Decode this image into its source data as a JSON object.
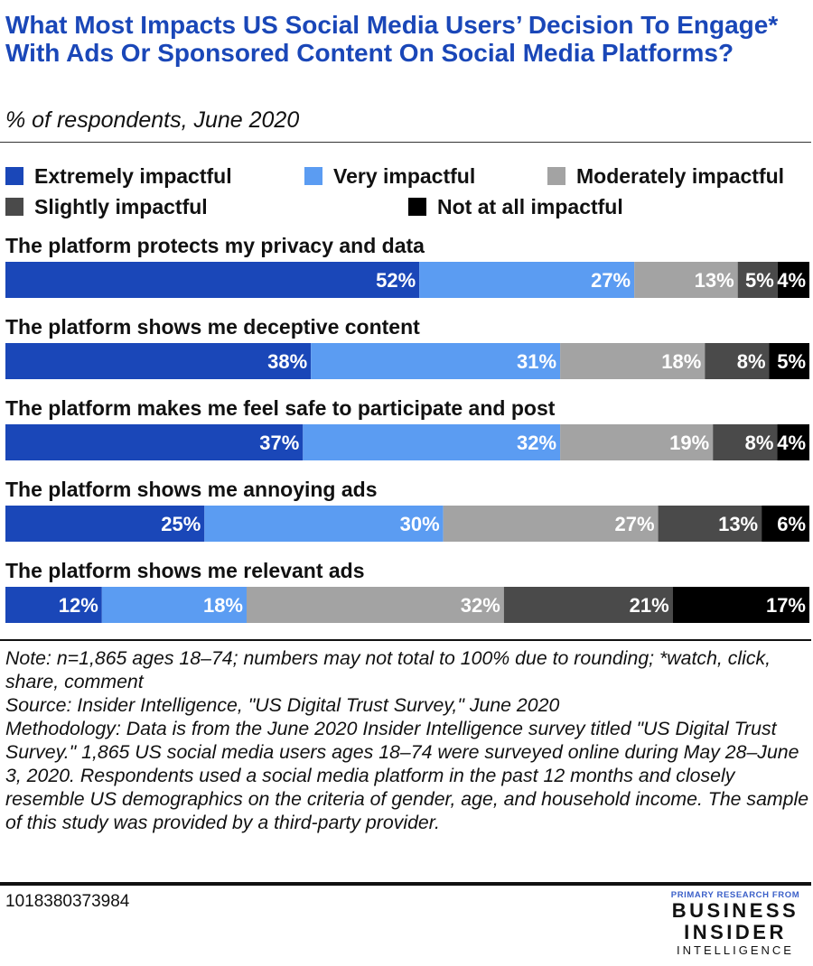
{
  "header": {
    "title": "What Most Impacts US Social Media Users’ Decision To Engage* With Ads Or Sponsored Content On Social Media Platforms?",
    "subtitle": "% of respondents, June 2020"
  },
  "legend": [
    {
      "label": "Extremely impactful",
      "color": "#1a47b8"
    },
    {
      "label": "Very impactful",
      "color": "#5b9cf2"
    },
    {
      "label": "Moderately impactful",
      "color": "#a3a3a3"
    },
    {
      "label": "Slightly impactful",
      "color": "#4a4a4a"
    },
    {
      "label": "Not at all impactful",
      "color": "#000000"
    }
  ],
  "chart_data": {
    "type": "bar",
    "stacked": true,
    "orientation": "horizontal",
    "categories": [
      "The platform protects my privacy and data",
      "The platform shows me deceptive content",
      "The platform makes me feel safe to participate and post",
      "The platform shows me annoying ads",
      "The platform shows me relevant ads"
    ],
    "series": [
      {
        "name": "Extremely impactful",
        "color": "#1a47b8",
        "values": [
          52,
          38,
          37,
          25,
          12
        ]
      },
      {
        "name": "Very impactful",
        "color": "#5b9cf2",
        "values": [
          27,
          31,
          32,
          30,
          18
        ]
      },
      {
        "name": "Moderately impactful",
        "color": "#a3a3a3",
        "values": [
          13,
          18,
          19,
          27,
          32
        ]
      },
      {
        "name": "Slightly impactful",
        "color": "#4a4a4a",
        "values": [
          5,
          8,
          8,
          13,
          21
        ]
      },
      {
        "name": "Not at all impactful",
        "color": "#000000",
        "values": [
          4,
          5,
          4,
          6,
          17
        ]
      }
    ],
    "value_suffix": "%",
    "legend_position": "top"
  },
  "notes": {
    "note": "Note: n=1,865 ages 18–74; numbers may not total to 100% due to rounding; *watch, click, share, comment",
    "source": "Source: Insider Intelligence, \"US Digital Trust Survey,\" June 2020",
    "methodology": "Methodology: Data is from the June 2020 Insider Intelligence survey titled \"US Digital Trust Survey.\" 1,865 US social media users ages 18–74 were surveyed online during May 28–June 3, 2020. Respondents used a social media platform in the past 12 months and closely resemble US demographics on the criteria of gender, age, and household income. The sample of this study was provided by a third-party provider."
  },
  "footer": {
    "chart_id": "1018380373984",
    "logo": {
      "top": "PRIMARY RESEARCH FROM",
      "line1": "BUSINESS",
      "line2": "INSIDER",
      "line3": "INTELLIGENCE"
    }
  }
}
